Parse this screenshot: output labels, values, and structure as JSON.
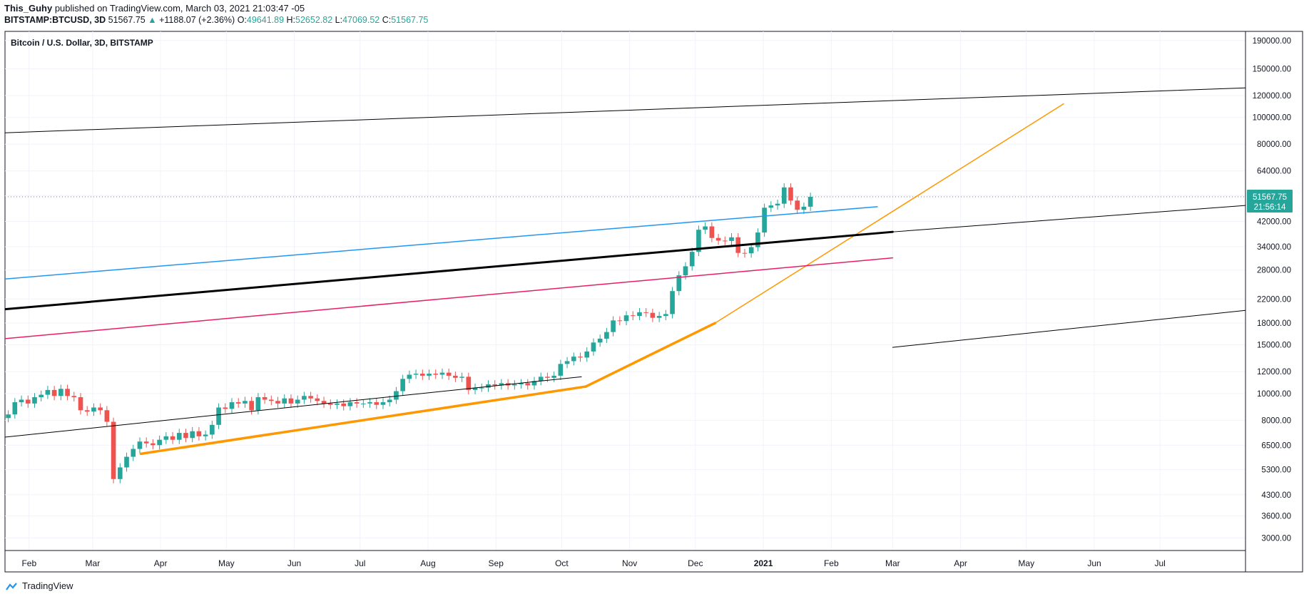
{
  "header": {
    "author": "This_Guhy",
    "published_text": "published on TradingView.com, March 03, 2021 21:03:47 -05",
    "symbol_line": {
      "symbol": "BITSTAMP:BTCUSD, 3D",
      "last": "51567.75",
      "change": "+1188.07 (+2.36%)",
      "o_label": "O:",
      "o": "49641.89",
      "h_label": "H:",
      "h": "52652.82",
      "l_label": "L:",
      "l": "47069.52",
      "c_label": "C:",
      "c": "51567.75"
    }
  },
  "footer": {
    "brand": "TradingView"
  },
  "colors": {
    "up": "#26a69a",
    "down": "#ef5350",
    "blue_line": "#2196f3",
    "pink_line": "#e91e63",
    "orange_line": "#ff9800",
    "black_line": "#000000",
    "grid": "#f0f3fa"
  },
  "chart_data": {
    "type": "candlestick",
    "title": "Bitcoin / U.S. Dollar, 3D, BITSTAMP",
    "scale": "log",
    "ylim": [
      2700,
      205000
    ],
    "y_ticks": [
      3000,
      3600,
      4300,
      5300,
      6500,
      8000,
      10000,
      12000,
      15000,
      18000,
      22000,
      28000,
      34000,
      42000,
      52000,
      64000,
      80000,
      100000,
      120000,
      150000,
      190000
    ],
    "y_tick_labels": [
      "3000.00",
      "3600.00",
      "4300.00",
      "5300.00",
      "6500.00",
      "8000.00",
      "10000.00",
      "12000.00",
      "15000.00",
      "18000.00",
      "22000.00",
      "28000.00",
      "34000.00",
      "42000.00",
      "52000.00",
      "64000.00",
      "80000.00",
      "100000.00",
      "120000.00",
      "150000.00",
      "190000.00"
    ],
    "x_axis": {
      "range": [
        "2020-01-21",
        "2021-08-09"
      ],
      "ticks": [
        {
          "date": "2020-02-01",
          "label": "Feb"
        },
        {
          "date": "2020-03-01",
          "label": "Mar"
        },
        {
          "date": "2020-04-01",
          "label": "Apr"
        },
        {
          "date": "2020-05-01",
          "label": "May"
        },
        {
          "date": "2020-06-01",
          "label": "Jun"
        },
        {
          "date": "2020-07-01",
          "label": "Jul"
        },
        {
          "date": "2020-08-01",
          "label": "Aug"
        },
        {
          "date": "2020-09-01",
          "label": "Sep"
        },
        {
          "date": "2020-10-01",
          "label": "Oct"
        },
        {
          "date": "2020-11-01",
          "label": "Nov"
        },
        {
          "date": "2020-12-01",
          "label": "Dec"
        },
        {
          "date": "2021-01-01",
          "label": "2021"
        },
        {
          "date": "2021-02-01",
          "label": "Feb"
        },
        {
          "date": "2021-03-01",
          "label": "Mar"
        },
        {
          "date": "2021-04-01",
          "label": "Apr"
        },
        {
          "date": "2021-05-01",
          "label": "May"
        },
        {
          "date": "2021-06-01",
          "label": "Jun"
        },
        {
          "date": "2021-07-01",
          "label": "Jul"
        }
      ]
    },
    "last_price": {
      "value": 51567.75,
      "label": "51567.75",
      "countdown": "21:56:14"
    },
    "closes": [
      8400,
      9300,
      9500,
      9200,
      9700,
      9900,
      10300,
      9800,
      10400,
      9800,
      9700,
      8700,
      8600,
      8900,
      8700,
      7900,
      4900,
      5400,
      5900,
      6300,
      6700,
      6600,
      6500,
      6800,
      7000,
      6800,
      7200,
      6900,
      7300,
      7000,
      7100,
      7700,
      8900,
      8800,
      9300,
      9200,
      9400,
      8700,
      9700,
      9500,
      9400,
      9200,
      9600,
      9200,
      9500,
      9800,
      9600,
      9400,
      9200,
      9100,
      9200,
      9000,
      9300,
      9200,
      9200,
      9300,
      9100,
      9300,
      9500,
      10200,
      11300,
      11700,
      11800,
      11600,
      11800,
      11700,
      11900,
      11600,
      11400,
      11500,
      10300,
      10500,
      10500,
      10800,
      10700,
      10900,
      10700,
      10800,
      10900,
      10700,
      11100,
      11500,
      11400,
      11600,
      12800,
      13100,
      13600,
      13500,
      14200,
      15300,
      15800,
      16700,
      18400,
      18300,
      19200,
      19100,
      19700,
      19600,
      18800,
      19100,
      19400,
      23500,
      26800,
      28900,
      32600,
      39200,
      40300,
      36600,
      35800,
      35700,
      36800,
      32300,
      32200,
      33900,
      38300,
      47100,
      48000,
      48700,
      55800,
      50000,
      46300,
      47500,
      51567.75
    ],
    "annotations": [
      {
        "type": "trendline",
        "style": "black_thin",
        "from": [
          "2020-01-21",
          6950
        ],
        "to": [
          "2020-10-10",
          11500
        ],
        "extended": false
      },
      {
        "type": "trendline",
        "style": "orange_thick",
        "from": [
          "2020-03-23",
          6050
        ],
        "to": [
          "2020-10-12",
          10600
        ]
      },
      {
        "type": "trendline",
        "style": "orange_thick",
        "from": [
          "2020-10-12",
          10600
        ],
        "to": [
          "2020-12-10",
          18000
        ]
      },
      {
        "type": "trendline",
        "style": "orange_thin",
        "from": [
          "2020-12-10",
          18000
        ],
        "to": [
          "2021-05-18",
          112000
        ]
      },
      {
        "type": "trendline",
        "style": "black_thin",
        "from": [
          "2020-01-21",
          88000
        ],
        "to": [
          "2021-08-09",
          128000
        ]
      },
      {
        "type": "trendline",
        "style": "blue",
        "from": [
          "2020-01-21",
          26000
        ],
        "to": [
          "2021-02-22",
          47500
        ]
      },
      {
        "type": "trendline",
        "style": "black_thick",
        "from": [
          "2020-01-21",
          20200
        ],
        "to": [
          "2021-03-01",
          38500
        ]
      },
      {
        "type": "trendline",
        "style": "pink",
        "from": [
          "2020-01-21",
          15800
        ],
        "to": [
          "2021-03-01",
          31000
        ]
      },
      {
        "type": "trendline",
        "style": "black_thin",
        "from": [
          "2021-03-01",
          38500
        ],
        "to": [
          "2021-08-09",
          48000
        ]
      },
      {
        "type": "trendline",
        "style": "black_thin",
        "from": [
          "2021-03-01",
          14700
        ],
        "to": [
          "2021-08-09",
          20000
        ]
      }
    ]
  }
}
